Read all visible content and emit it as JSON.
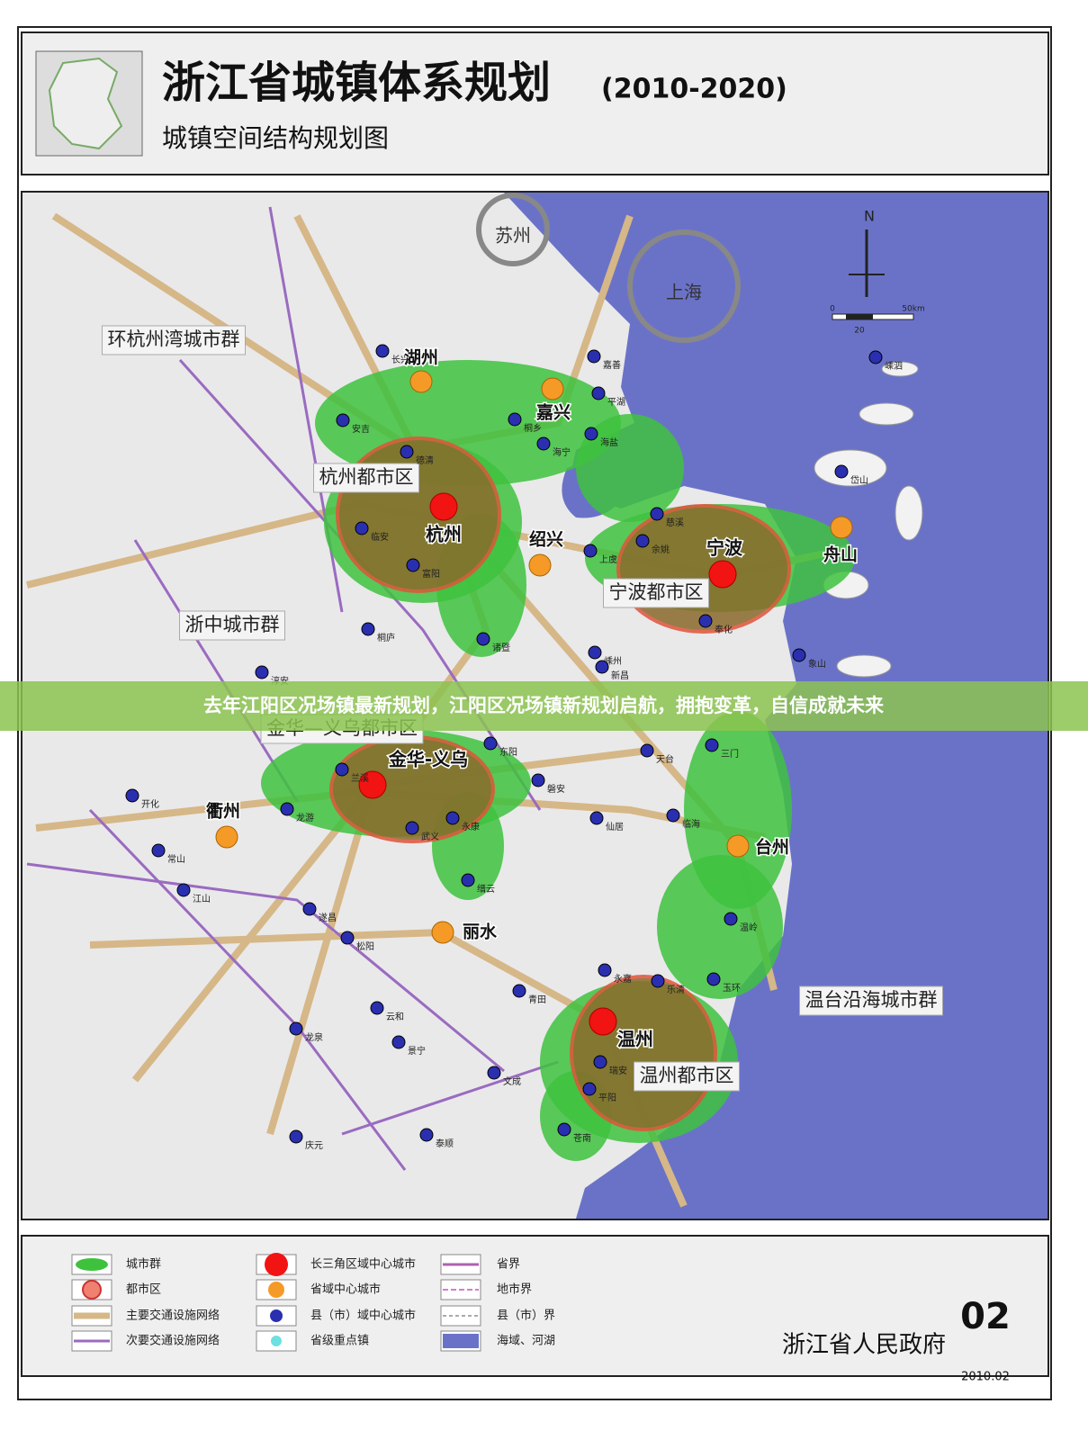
{
  "header": {
    "title": "浙江省城镇体系规划",
    "years": "(2010-2020)",
    "subtitle": "城镇空间结构规划图"
  },
  "map": {
    "outside_cities": [
      "苏州",
      "上海"
    ],
    "north": "N",
    "scale": [
      "0",
      "20",
      "50km"
    ],
    "regions": [
      "环杭州湾城市群",
      "杭州都市区",
      "宁波都市区",
      "浙中城市群",
      "金华—义乌都市区",
      "温台沿海城市群",
      "温州都市区"
    ],
    "regional_centers": [
      "杭州",
      "宁波",
      "金华-义乌",
      "温州"
    ],
    "provincial_centers": [
      "湖州",
      "嘉兴",
      "绍兴",
      "舟山",
      "衢州",
      "台州",
      "丽水"
    ],
    "county_centers": [
      "长兴",
      "安吉",
      "德清",
      "临安",
      "富阳",
      "桐庐",
      "诸暨",
      "海宁",
      "桐乡",
      "海盐",
      "平湖",
      "嘉善",
      "上虞",
      "余姚",
      "慈溪",
      "奉化",
      "象山",
      "嵊州",
      "新昌",
      "天台",
      "三门",
      "临海",
      "温岭",
      "玉环",
      "乐清",
      "永嘉",
      "瑞安",
      "平阳",
      "苍南",
      "文成",
      "泰顺",
      "庆元",
      "龙泉",
      "景宁",
      "云和",
      "松阳",
      "遂昌",
      "缙云",
      "武义",
      "永康",
      "兰溪",
      "东阳",
      "磐安",
      "仙居",
      "龙游",
      "江山",
      "常山",
      "开化",
      "淳安",
      "青田",
      "岱山",
      "嵊泗"
    ]
  },
  "legend": {
    "items": [
      "城市群",
      "都市区",
      "主要交通设施网络",
      "次要交通设施网络",
      "长三角区域中心城市",
      "省域中心城市",
      "县（市）域中心城市",
      "省级重点镇",
      "省界",
      "地市界",
      "县（市）界",
      "海域、河湖"
    ]
  },
  "footer": {
    "number": "02",
    "issuer": "浙江省人民政府",
    "date": "2010.02"
  },
  "banner": "去年江阳区况场镇最新规划，江阳区况场镇新规划启航，拥抱变革，自信成就未来"
}
